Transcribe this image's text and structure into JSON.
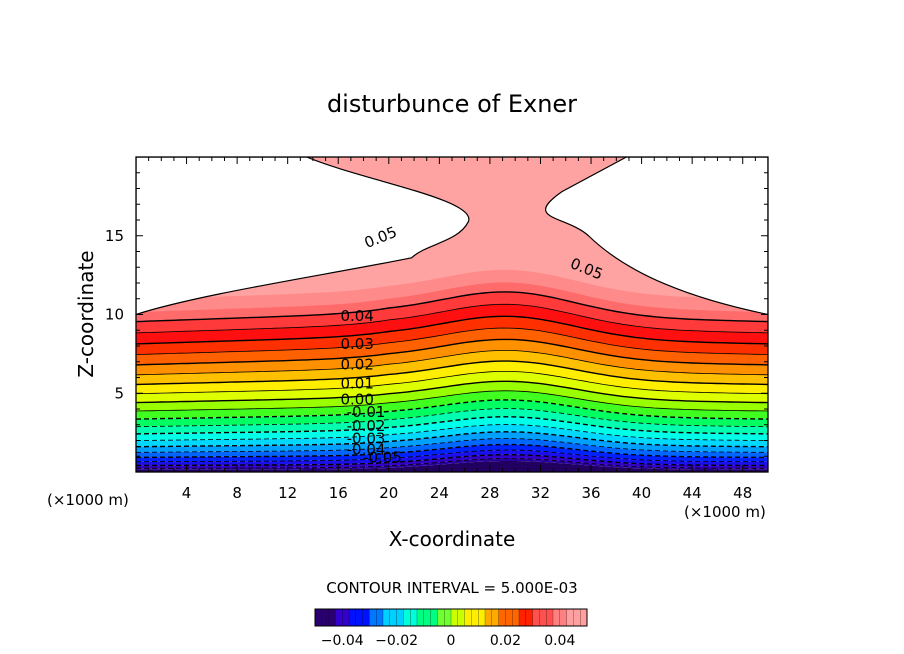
{
  "chart_data": {
    "type": "contour",
    "title": "disturbunce of Exner",
    "xlabel": "X-coordinate",
    "ylabel": "Z-coordinate",
    "x_unit_left": "(×1000 m)",
    "x_unit_right": "(×1000 m)",
    "xlim": [
      0,
      50
    ],
    "ylim": [
      0,
      20
    ],
    "x_ticks": [
      {
        "value": 4,
        "label": "4"
      },
      {
        "value": 8,
        "label": "8"
      },
      {
        "value": 12,
        "label": "12"
      },
      {
        "value": 16,
        "label": "16"
      },
      {
        "value": 20,
        "label": "20"
      },
      {
        "value": 24,
        "label": "24"
      },
      {
        "value": 28,
        "label": "28"
      },
      {
        "value": 32,
        "label": "32"
      },
      {
        "value": 36,
        "label": "36"
      },
      {
        "value": 40,
        "label": "40"
      },
      {
        "value": 44,
        "label": "44"
      },
      {
        "value": 48,
        "label": "48"
      }
    ],
    "y_ticks": [
      {
        "value": 5,
        "label": "5"
      },
      {
        "value": 10,
        "label": "10"
      },
      {
        "value": 15,
        "label": "15"
      }
    ],
    "contour_interval_text": "CONTOUR INTERVAL = 5.000E-03",
    "contour_labels": [
      {
        "text": "0.05",
        "x": 19.5,
        "z": 14.6,
        "angle": -22
      },
      {
        "text": "0.05",
        "x": 35.5,
        "z": 12.6,
        "angle": 22
      },
      {
        "text": "0.04",
        "x": 17.5,
        "z": 9.6,
        "angle": 0
      },
      {
        "text": "0.03",
        "x": 17.5,
        "z": 7.8,
        "angle": 0
      },
      {
        "text": "0.02",
        "x": 17.5,
        "z": 6.5,
        "angle": 0
      },
      {
        "text": "0.01",
        "x": 17.5,
        "z": 5.3,
        "angle": 0
      },
      {
        "text": "0.00",
        "x": 17.5,
        "z": 4.3,
        "angle": 0
      },
      {
        "text": "-0.01",
        "x": 18.2,
        "z": 3.5,
        "angle": 0
      },
      {
        "text": "-0.02",
        "x": 18.2,
        "z": 2.6,
        "angle": 0
      },
      {
        "text": "-0.03",
        "x": 18.2,
        "z": 1.8,
        "angle": 0
      },
      {
        "text": "-0.04",
        "x": 18.2,
        "z": 1.1,
        "angle": 0
      },
      {
        "text": "-0.05",
        "x": 19.5,
        "z": 0.6,
        "angle": 0
      }
    ],
    "colorbar": {
      "range": [
        -0.05,
        0.05
      ],
      "ticks": [
        {
          "value": -0.04,
          "label": "-0.04"
        },
        {
          "value": -0.02,
          "label": "-0.02"
        },
        {
          "value": 0,
          "label": "0"
        },
        {
          "value": 0.02,
          "label": "0.02"
        },
        {
          "value": 0.04,
          "label": "0.04"
        }
      ],
      "colors": [
        "#2a0070",
        "#3300cc",
        "#0011ff",
        "#0077ff",
        "#00d0ff",
        "#00ffd8",
        "#00ff80",
        "#70ff30",
        "#ccff00",
        "#ffee00",
        "#ffaa00",
        "#ff6600",
        "#ff2200",
        "#ff5050",
        "#ff8080",
        "#ffa0a0"
      ]
    },
    "grid": false
  }
}
